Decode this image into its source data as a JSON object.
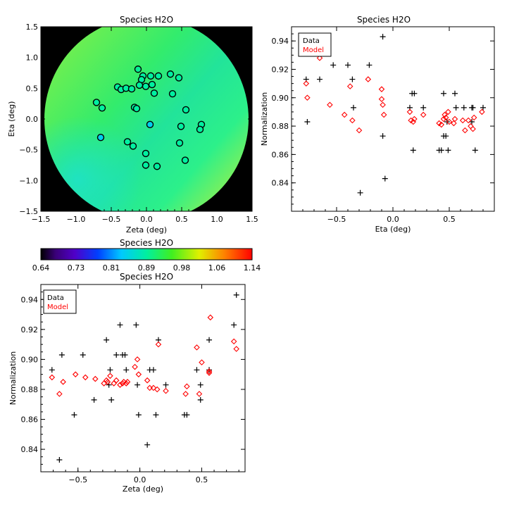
{
  "chart_data": [
    {
      "id": "map",
      "type": "scatter",
      "title": "Species H2O",
      "xlabel": "Zeta (deg)",
      "ylabel": "Eta (deg)",
      "xlim": [
        -1.5,
        1.5
      ],
      "ylim": [
        -1.5,
        1.5
      ],
      "xticks": [
        "−1.5",
        "−1.0",
        "−0.5",
        "0.0",
        "0.5",
        "1.0",
        "1.5"
      ],
      "yticks": [
        "−1.5",
        "−1.0",
        "−0.5",
        "0.0",
        "0.5",
        "1.0",
        "1.5"
      ],
      "background": "black",
      "field_description": "smooth model normalization field inside circle of radius 1.45 deg",
      "points": [
        {
          "zeta": -0.12,
          "eta": 0.81,
          "norm": 0.895
        },
        {
          "zeta": -0.05,
          "eta": 0.7,
          "norm": 0.89
        },
        {
          "zeta": -0.07,
          "eta": 0.64,
          "norm": 0.89
        },
        {
          "zeta": 0.06,
          "eta": 0.7,
          "norm": 0.89
        },
        {
          "zeta": 0.17,
          "eta": 0.7,
          "norm": 0.89
        },
        {
          "zeta": 0.34,
          "eta": 0.73,
          "norm": 0.89
        },
        {
          "zeta": 0.46,
          "eta": 0.67,
          "norm": 0.89
        },
        {
          "zeta": -0.41,
          "eta": 0.52,
          "norm": 0.89
        },
        {
          "zeta": -0.36,
          "eta": 0.48,
          "norm": 0.89
        },
        {
          "zeta": -0.29,
          "eta": 0.5,
          "norm": 0.89
        },
        {
          "zeta": -0.21,
          "eta": 0.49,
          "norm": 0.89
        },
        {
          "zeta": -0.1,
          "eta": 0.55,
          "norm": 0.89
        },
        {
          "zeta": -0.01,
          "eta": 0.53,
          "norm": 0.89
        },
        {
          "zeta": 0.08,
          "eta": 0.56,
          "norm": 0.89
        },
        {
          "zeta": 0.11,
          "eta": 0.42,
          "norm": 0.89
        },
        {
          "zeta": 0.37,
          "eta": 0.41,
          "norm": 0.89
        },
        {
          "zeta": -0.71,
          "eta": 0.27,
          "norm": 0.89
        },
        {
          "zeta": -0.63,
          "eta": 0.18,
          "norm": 0.89
        },
        {
          "zeta": -0.17,
          "eta": 0.19,
          "norm": 0.89
        },
        {
          "zeta": -0.14,
          "eta": 0.17,
          "norm": 0.89
        },
        {
          "zeta": 0.56,
          "eta": 0.15,
          "norm": 0.89
        },
        {
          "zeta": 0.05,
          "eta": -0.09,
          "norm": 0.84
        },
        {
          "zeta": -0.65,
          "eta": -0.3,
          "norm": 0.84
        },
        {
          "zeta": 0.49,
          "eta": -0.12,
          "norm": 0.89
        },
        {
          "zeta": 0.78,
          "eta": -0.09,
          "norm": 0.89
        },
        {
          "zeta": 0.76,
          "eta": -0.17,
          "norm": 0.89
        },
        {
          "zeta": -0.27,
          "eta": -0.37,
          "norm": 0.89
        },
        {
          "zeta": -0.19,
          "eta": -0.44,
          "norm": 0.89
        },
        {
          "zeta": 0.47,
          "eta": -0.39,
          "norm": 0.89
        },
        {
          "zeta": -0.01,
          "eta": -0.56,
          "norm": 0.89
        },
        {
          "zeta": 0.55,
          "eta": -0.67,
          "norm": 0.89
        },
        {
          "zeta": -0.01,
          "eta": -0.75,
          "norm": 0.89
        },
        {
          "zeta": 0.15,
          "eta": -0.77,
          "norm": 0.89
        }
      ]
    },
    {
      "id": "colorbar",
      "type": "heatmap",
      "title": "Species H2O",
      "colormap": "rainbow",
      "range": [
        0.64,
        1.14
      ],
      "tick_labels": [
        "0.64",
        "0.73",
        "0.81",
        "0.89",
        "0.98",
        "1.06",
        "1.14"
      ]
    },
    {
      "id": "eta_plot",
      "type": "scatter",
      "title": "Species H2O",
      "xlabel": "Eta (deg)",
      "ylabel": "Normalization",
      "xlim": [
        -0.9,
        0.9
      ],
      "ylim": [
        0.82,
        0.95
      ],
      "xticks": [
        -0.5,
        0.0,
        0.5
      ],
      "xtick_labels": [
        "−0.5",
        "0.0",
        "0.5"
      ],
      "yticks": [
        0.84,
        0.86,
        0.88,
        0.9,
        0.92,
        0.94
      ],
      "ytick_labels": [
        "0.84",
        "0.86",
        "0.88",
        "0.90",
        "0.92",
        "0.94"
      ],
      "legend": {
        "position": "top-left",
        "entries": [
          {
            "label": "Data",
            "color": "#000000"
          },
          {
            "label": "Model",
            "color": "#ff0000"
          }
        ]
      },
      "series": [
        {
          "name": "Data",
          "marker": "plus",
          "color": "#000000",
          "x": [
            -0.77,
            -0.76,
            -0.65,
            -0.53,
            -0.4,
            -0.36,
            -0.35,
            -0.29,
            -0.21,
            -0.09,
            -0.09,
            -0.07,
            0.15,
            0.17,
            0.19,
            0.18,
            0.27,
            0.41,
            0.43,
            0.45,
            0.45,
            0.47,
            0.48,
            0.49,
            0.55,
            0.56,
            0.63,
            0.7,
            0.7,
            0.71,
            0.73,
            0.8
          ],
          "y": [
            0.913,
            0.883,
            0.913,
            0.923,
            0.923,
            0.913,
            0.893,
            0.833,
            0.923,
            0.943,
            0.873,
            0.843,
            0.893,
            0.903,
            0.903,
            0.863,
            0.893,
            0.863,
            0.863,
            0.873,
            0.903,
            0.873,
            0.883,
            0.863,
            0.903,
            0.893,
            0.893,
            0.893,
            0.883,
            0.893,
            0.863,
            0.893
          ]
        },
        {
          "name": "Model",
          "marker": "diamond",
          "color": "#ff0000",
          "x": [
            -0.77,
            -0.76,
            -0.65,
            -0.56,
            -0.43,
            -0.38,
            -0.36,
            -0.3,
            -0.22,
            -0.1,
            -0.1,
            -0.09,
            -0.08,
            0.15,
            0.16,
            0.18,
            0.19,
            0.27,
            0.41,
            0.43,
            0.45,
            0.46,
            0.47,
            0.49,
            0.5,
            0.54,
            0.55,
            0.62,
            0.64,
            0.67,
            0.69,
            0.71,
            0.72,
            0.79
          ],
          "y": [
            0.91,
            0.9,
            0.928,
            0.895,
            0.888,
            0.908,
            0.884,
            0.877,
            0.913,
            0.906,
            0.899,
            0.895,
            0.888,
            0.89,
            0.884,
            0.883,
            0.885,
            0.888,
            0.882,
            0.881,
            0.885,
            0.888,
            0.886,
            0.89,
            0.883,
            0.882,
            0.885,
            0.884,
            0.877,
            0.884,
            0.88,
            0.878,
            0.886,
            0.89
          ]
        }
      ]
    },
    {
      "id": "zeta_plot",
      "type": "scatter",
      "title": "Species H2O",
      "xlabel": "Zeta (deg)",
      "ylabel": "Normalization",
      "xlim": [
        -0.8,
        0.85
      ],
      "ylim": [
        0.825,
        0.95
      ],
      "xticks": [
        -0.5,
        0.0,
        0.5
      ],
      "xtick_labels": [
        "−0.5",
        "0.0",
        "0.5"
      ],
      "yticks": [
        0.84,
        0.86,
        0.88,
        0.9,
        0.92,
        0.94
      ],
      "ytick_labels": [
        "0.84",
        "0.86",
        "0.88",
        "0.90",
        "0.92",
        "0.94"
      ],
      "legend": {
        "position": "top-left",
        "entries": [
          {
            "label": "Data",
            "color": "#000000"
          },
          {
            "label": "Model",
            "color": "#ff0000"
          }
        ]
      },
      "series": [
        {
          "name": "Data",
          "marker": "plus",
          "color": "#000000",
          "x": [
            -0.71,
            -0.65,
            -0.63,
            -0.53,
            -0.46,
            -0.37,
            -0.27,
            -0.25,
            -0.24,
            -0.23,
            -0.19,
            -0.16,
            -0.14,
            -0.12,
            -0.11,
            -0.03,
            -0.02,
            -0.01,
            0.06,
            0.08,
            0.11,
            0.13,
            0.15,
            0.21,
            0.36,
            0.38,
            0.46,
            0.49,
            0.49,
            0.56,
            0.56,
            0.76,
            0.78
          ],
          "y": [
            0.893,
            0.833,
            0.903,
            0.863,
            0.903,
            0.873,
            0.913,
            0.883,
            0.893,
            0.873,
            0.903,
            0.923,
            0.903,
            0.903,
            0.893,
            0.923,
            0.883,
            0.863,
            0.843,
            0.893,
            0.893,
            0.863,
            0.913,
            0.883,
            0.863,
            0.863,
            0.893,
            0.883,
            0.873,
            0.893,
            0.913,
            0.923,
            0.943
          ]
        },
        {
          "name": "Model",
          "marker": "diamond",
          "color": "#ff0000",
          "x": [
            -0.71,
            -0.65,
            -0.62,
            -0.52,
            -0.44,
            -0.36,
            -0.29,
            -0.27,
            -0.26,
            -0.24,
            -0.21,
            -0.19,
            -0.16,
            -0.14,
            -0.13,
            -0.11,
            -0.1,
            -0.04,
            -0.02,
            -0.01,
            0.06,
            0.08,
            0.11,
            0.14,
            0.15,
            0.21,
            0.37,
            0.38,
            0.46,
            0.48,
            0.5,
            0.56,
            0.57,
            0.56,
            0.76,
            0.78
          ],
          "y": [
            0.888,
            0.877,
            0.885,
            0.89,
            0.888,
            0.887,
            0.884,
            0.886,
            0.885,
            0.889,
            0.884,
            0.886,
            0.883,
            0.884,
            0.885,
            0.884,
            0.885,
            0.895,
            0.9,
            0.89,
            0.886,
            0.881,
            0.881,
            0.88,
            0.91,
            0.879,
            0.877,
            0.882,
            0.908,
            0.877,
            0.898,
            0.892,
            0.928,
            0.891,
            0.912,
            0.907
          ]
        }
      ]
    }
  ]
}
